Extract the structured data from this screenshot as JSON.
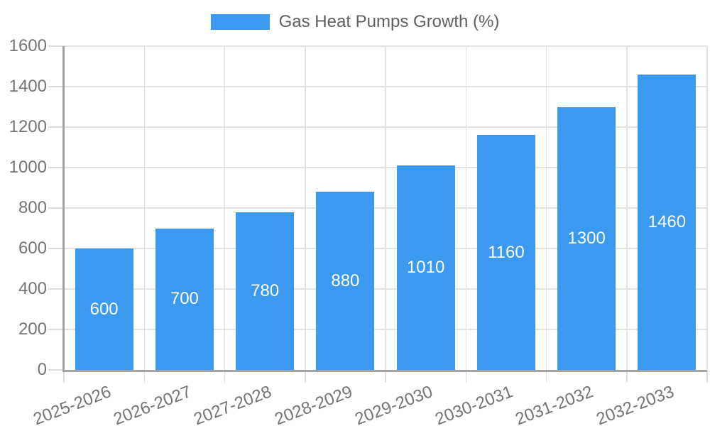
{
  "chart_data": {
    "type": "bar",
    "title": "Gas Heat Pumps Growth (%)",
    "legend_position": "top",
    "categories": [
      "2025-2026",
      "2026-2027",
      "2027-2028",
      "2028-2029",
      "2029-2030",
      "2030-2031",
      "2031-2032",
      "2032-2033"
    ],
    "values": [
      600,
      700,
      780,
      880,
      1010,
      1160,
      1300,
      1460
    ],
    "xlabel": "",
    "ylabel": "",
    "ylim": [
      0,
      1600
    ],
    "yticks": [
      0,
      200,
      400,
      600,
      800,
      1000,
      1200,
      1400,
      1600
    ],
    "grid": true,
    "colors": {
      "bar": "#3B9AEF",
      "bar_label": "#FFFFFF",
      "grid": "#E2E2E2",
      "tick": "#DCDCDC",
      "axis": "#A3A3A3",
      "tick_label": "#757575",
      "legend_text": "#5F5F5F",
      "background": "#FFFFFF"
    }
  }
}
